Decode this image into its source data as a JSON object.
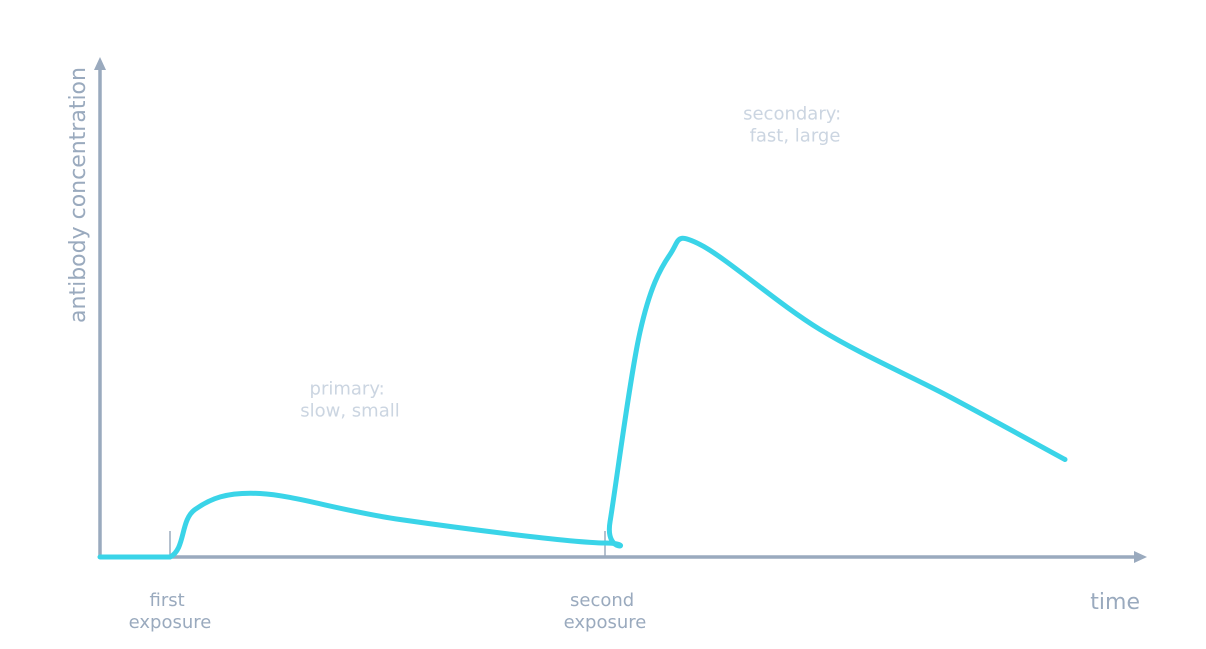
{
  "chart_data": {
    "type": "line",
    "title": "",
    "xlabel": "time",
    "ylabel": "antibody concentration",
    "xlim": [
      0,
      100
    ],
    "ylim": [
      0,
      100
    ],
    "grid": false,
    "legend": "none",
    "ticks": [
      {
        "x": 7,
        "label": [
          "first",
          "exposure"
        ]
      },
      {
        "x": 50.5,
        "label": [
          "second",
          "exposure"
        ]
      }
    ],
    "annotations": [
      {
        "x": 25,
        "y": 32.5,
        "lines": [
          "primary:",
          "slow, small"
        ]
      },
      {
        "x": 69.5,
        "y": 87.5,
        "lines": [
          "secondary:",
          "fast, large"
        ]
      }
    ],
    "series": [
      {
        "values_x": [
          0,
          7,
          9.5,
          16,
          30,
          50.5,
          51,
          54,
          57,
          60,
          72,
          85,
          96.5
        ],
        "values_y": [
          0,
          0,
          9.5,
          12.7,
          7.5,
          2.8,
          7,
          45,
          60.5,
          62.5,
          45.5,
          32,
          19.5
        ]
      }
    ],
    "colors": {
      "curve": "#3ad4e8",
      "axis": "#9aaabe",
      "annotation": "#cbd5e1"
    }
  }
}
